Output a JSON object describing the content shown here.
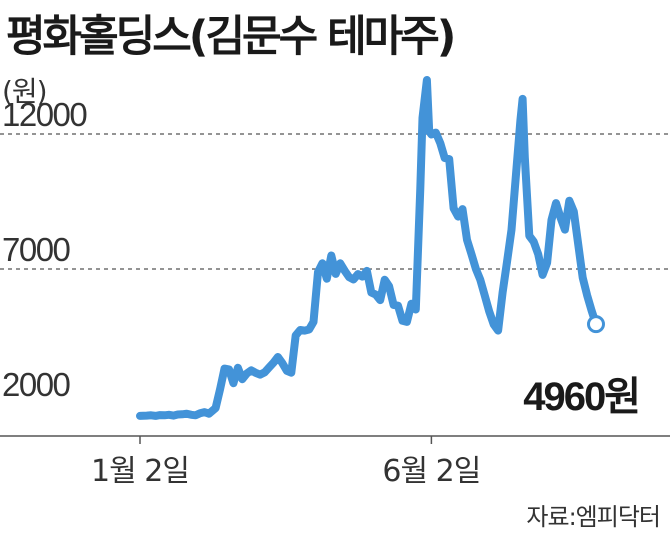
{
  "chart_data": {
    "type": "line",
    "title": "평화홀딩스(김문수 테마주)",
    "unit": "(원)",
    "source": "자료:엠피닥터",
    "y_ticks": [
      {
        "value": 12000,
        "label": "12000"
      },
      {
        "value": 7000,
        "label": "7000"
      },
      {
        "value": 2000,
        "label": "2000"
      }
    ],
    "x_ticks": [
      {
        "label": "1월 2일",
        "index": 0
      },
      {
        "label": "6월 2일",
        "index": 131
      }
    ],
    "ylim": [
      1000,
      13500
    ],
    "grid": "horizontal dashed at 7000 and 12000",
    "color": "#4393d8",
    "end_label": "4960원",
    "series": [
      {
        "values": [
          1560,
          1570,
          1580,
          1560,
          1590,
          1580,
          1600,
          1570,
          1610,
          1620,
          1640,
          1600,
          1580,
          1660,
          1700,
          1640,
          1850,
          2550,
          3310,
          3280,
          2770,
          3340,
          2920,
          3130,
          3250,
          3150,
          3090,
          3170,
          3350,
          3530,
          3740,
          3510,
          3230,
          3160,
          4540,
          4740,
          4720,
          4760,
          5040,
          6890,
          7210,
          6640,
          7500,
          6820,
          7210,
          6940,
          6700,
          6610,
          6810,
          6720,
          6930,
          6130,
          6050,
          5850,
          6600,
          6360,
          5670,
          5640,
          5080,
          5040,
          5710,
          5500,
          9990,
          12600,
          14000,
          12100,
          11980,
          12050,
          11660,
          11110,
          11070,
          9250,
          8940,
          9220,
          8080,
          7560,
          7000,
          6600,
          6010,
          5430,
          4950,
          4720,
          6130,
          7260,
          8450,
          10460,
          12500,
          13300,
          11140,
          8230,
          8010,
          7550,
          6780,
          7230,
          8820,
          9440,
          8920,
          8460,
          9530,
          9130,
          7920,
          6680,
          6030,
          5460,
          4960
        ],
        "x_index": [
          0,
          3,
          5,
          7,
          9,
          11,
          13,
          15,
          17,
          19,
          21,
          23,
          25,
          27,
          29,
          31,
          34,
          36,
          38,
          40,
          42,
          44,
          46,
          48,
          50,
          52,
          54,
          56,
          58,
          60,
          62,
          64,
          66,
          68,
          70,
          72,
          74,
          76,
          78,
          80,
          82,
          84,
          86,
          88,
          90,
          92,
          94,
          96,
          98,
          100,
          102,
          104,
          106,
          108,
          110,
          112,
          114,
          116,
          118,
          120,
          122,
          124,
          126,
          127,
          129,
          130,
          131,
          133,
          135,
          137,
          139,
          141,
          143,
          145,
          147,
          149,
          151,
          153,
          155,
          157,
          159,
          161,
          163,
          165,
          167,
          169,
          171,
          172,
          173,
          175,
          177,
          179,
          181,
          183,
          185,
          187,
          189,
          191,
          193,
          195,
          197,
          199,
          201,
          203,
          205
        ]
      }
    ]
  }
}
